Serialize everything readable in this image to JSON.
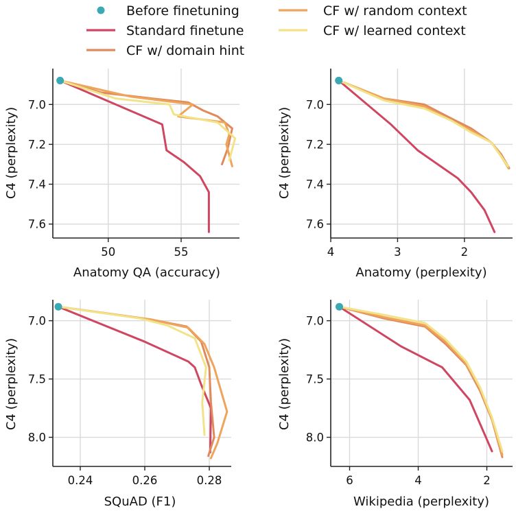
{
  "colors": {
    "before": "#3aa9b3",
    "standard": "#cf4660",
    "domain_hint": "#e08a5c",
    "random_context": "#eea45a",
    "learned_context": "#f2e288"
  },
  "legend": {
    "before": "Before finetuning",
    "standard": "Standard finetune",
    "domain_hint": "CF w/ domain hint",
    "random_context": "CF w/ random context",
    "learned_context": "CF w/ learned context"
  },
  "chart_data": [
    {
      "type": "line",
      "xlabel": "Anatomy QA (accuracy)",
      "ylabel": "C4 (perplexity)",
      "xlim": [
        46.2,
        59.0
      ],
      "ylim": [
        7.67,
        6.82
      ],
      "x_reversed": false,
      "xticks": [
        50,
        55
      ],
      "xtick_labels": [
        "50",
        "55"
      ],
      "yticks": [
        7.0,
        7.2,
        7.4,
        7.6
      ],
      "ytick_labels": [
        "7.0",
        "7.2",
        "7.4",
        "7.6"
      ],
      "before": {
        "x": 46.7,
        "y": 6.88
      },
      "series": [
        {
          "key": "standard",
          "name": "Standard finetune",
          "x": [
            46.7,
            53.7,
            54.0,
            55.2,
            56.3,
            56.9,
            56.9
          ],
          "y": [
            6.88,
            7.1,
            7.23,
            7.29,
            7.36,
            7.44,
            7.64
          ]
        },
        {
          "key": "domain_hint",
          "name": "CF w/ domain hint",
          "x": [
            46.7,
            49.5,
            53.0,
            55.5,
            56.5,
            57.5,
            58.5,
            58.2,
            57.8
          ],
          "y": [
            6.88,
            6.94,
            6.97,
            6.99,
            7.03,
            7.06,
            7.12,
            7.22,
            7.3
          ]
        },
        {
          "key": "random_context",
          "name": "CF w/ random context",
          "x": [
            46.7,
            51.5,
            55.8,
            54.8,
            58.0,
            58.3,
            58.1,
            58.5
          ],
          "y": [
            6.88,
            6.96,
            7.0,
            7.06,
            7.09,
            7.15,
            7.2,
            7.31
          ]
        },
        {
          "key": "learned_context",
          "name": "CF w/ learned context",
          "x": [
            46.7,
            50.5,
            54.2,
            54.5,
            55.2,
            57.5,
            58.7,
            58.3
          ],
          "y": [
            6.88,
            6.97,
            7.0,
            7.05,
            7.06,
            7.09,
            7.17,
            7.28
          ]
        }
      ]
    },
    {
      "type": "line",
      "xlabel": "Anatomy (perplexity)",
      "ylabel": "C4 (perplexity)",
      "xlim": [
        4.0,
        1.28
      ],
      "ylim": [
        7.67,
        6.82
      ],
      "x_reversed": true,
      "xticks": [
        4,
        3,
        2
      ],
      "xtick_labels": [
        "4",
        "3",
        "2"
      ],
      "yticks": [
        7.0,
        7.2,
        7.4,
        7.6
      ],
      "ytick_labels": [
        "7.0",
        "7.2",
        "7.4",
        "7.6"
      ],
      "before": {
        "x": 3.88,
        "y": 6.88
      },
      "series": [
        {
          "key": "standard",
          "name": "Standard finetune",
          "x": [
            3.88,
            3.1,
            2.7,
            2.4,
            2.1,
            1.9,
            1.7,
            1.55
          ],
          "y": [
            6.88,
            7.1,
            7.23,
            7.3,
            7.37,
            7.44,
            7.53,
            7.64
          ]
        },
        {
          "key": "domain_hint",
          "name": "CF w/ domain hint",
          "x": [
            3.88,
            3.2,
            2.6,
            2.2,
            1.9,
            1.6,
            1.45,
            1.33
          ],
          "y": [
            6.88,
            6.97,
            7.0,
            7.07,
            7.12,
            7.19,
            7.25,
            7.32
          ]
        },
        {
          "key": "random_context",
          "name": "CF w/ random context",
          "x": [
            3.88,
            3.2,
            2.6,
            2.2,
            1.9,
            1.6,
            1.45,
            1.34
          ],
          "y": [
            6.88,
            6.97,
            7.01,
            7.08,
            7.13,
            7.19,
            7.26,
            7.32
          ]
        },
        {
          "key": "learned_context",
          "name": "CF w/ learned context",
          "x": [
            3.88,
            3.2,
            2.6,
            2.2,
            1.9,
            1.6,
            1.45,
            1.35
          ],
          "y": [
            6.88,
            6.98,
            7.02,
            7.08,
            7.14,
            7.19,
            7.26,
            7.31
          ]
        }
      ]
    },
    {
      "type": "line",
      "xlabel": "SQuAD (F1)",
      "ylabel": "C4 (perplexity)",
      "xlim": [
        0.2315,
        0.2868
      ],
      "ylim": [
        8.25,
        6.82
      ],
      "x_reversed": false,
      "xticks": [
        0.24,
        0.26,
        0.28
      ],
      "xtick_labels": [
        "0.24",
        "0.26",
        "0.28"
      ],
      "yticks": [
        7.0,
        7.5,
        8.0
      ],
      "ytick_labels": [
        "7.0",
        "7.5",
        "8.0"
      ],
      "before": {
        "x": 0.2332,
        "y": 6.88
      },
      "series": [
        {
          "key": "standard",
          "name": "Standard finetune",
          "x": [
            0.2332,
            0.26,
            0.2735,
            0.2755,
            0.2775,
            0.2805,
            0.2803
          ],
          "y": [
            6.88,
            7.18,
            7.35,
            7.4,
            7.55,
            7.75,
            8.13
          ]
        },
        {
          "key": "domain_hint",
          "name": "CF w/ domain hint",
          "x": [
            0.2332,
            0.262,
            0.273,
            0.2775,
            0.28,
            0.2805,
            0.2815,
            0.2797
          ],
          "y": [
            6.88,
            6.99,
            7.05,
            7.18,
            7.4,
            7.7,
            8.0,
            8.16
          ]
        },
        {
          "key": "random_context",
          "name": "CF w/ random context",
          "x": [
            0.2332,
            0.262,
            0.2735,
            0.2785,
            0.2815,
            0.2855,
            0.2825,
            0.2805
          ],
          "y": [
            6.88,
            6.99,
            7.06,
            7.2,
            7.4,
            7.78,
            8.05,
            8.18
          ]
        },
        {
          "key": "learned_context",
          "name": "CF w/ learned context",
          "x": [
            0.2332,
            0.2585,
            0.267,
            0.2755,
            0.279,
            0.2778,
            0.2785
          ],
          "y": [
            6.88,
            6.98,
            7.04,
            7.15,
            7.4,
            7.7,
            7.98
          ]
        }
      ]
    },
    {
      "type": "line",
      "xlabel": "Wikipedia (perplexity)",
      "ylabel": "C4 (perplexity)",
      "xlim": [
        6.55,
        1.25
      ],
      "ylim": [
        8.25,
        6.82
      ],
      "x_reversed": true,
      "xticks": [
        6,
        4,
        2
      ],
      "xtick_labels": [
        "6",
        "4",
        "2"
      ],
      "yticks": [
        7.0,
        7.5,
        8.0
      ],
      "ytick_labels": [
        "7.0",
        "7.5",
        "8.0"
      ],
      "before": {
        "x": 6.3,
        "y": 6.88
      },
      "series": [
        {
          "key": "standard",
          "name": "Standard finetune",
          "x": [
            6.3,
            4.5,
            3.3,
            2.5,
            1.85
          ],
          "y": [
            6.88,
            7.22,
            7.4,
            7.68,
            8.12
          ]
        },
        {
          "key": "domain_hint",
          "name": "CF w/ domain hint",
          "x": [
            6.3,
            5.0,
            3.8,
            3.2,
            2.6,
            2.2,
            1.85,
            1.55
          ],
          "y": [
            6.88,
            6.98,
            7.05,
            7.2,
            7.38,
            7.6,
            7.85,
            8.17
          ]
        },
        {
          "key": "random_context",
          "name": "CF w/ random context",
          "x": [
            6.3,
            5.0,
            3.8,
            3.2,
            2.6,
            2.2,
            1.85,
            1.55
          ],
          "y": [
            6.88,
            6.97,
            7.04,
            7.18,
            7.37,
            7.58,
            7.85,
            8.15
          ]
        },
        {
          "key": "learned_context",
          "name": "CF w/ learned context",
          "x": [
            6.3,
            5.0,
            3.8,
            3.2,
            2.6,
            2.2,
            1.85,
            1.55
          ],
          "y": [
            6.88,
            6.95,
            7.02,
            7.16,
            7.35,
            7.57,
            7.83,
            8.12
          ]
        }
      ]
    }
  ]
}
